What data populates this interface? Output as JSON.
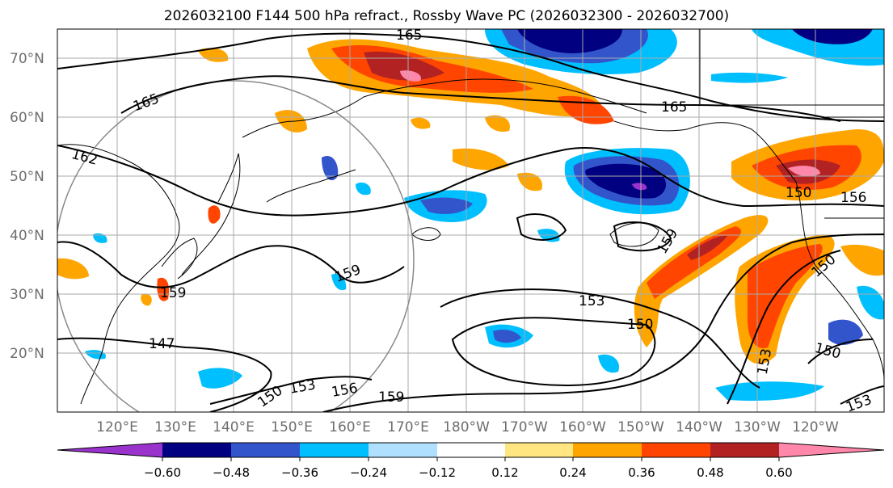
{
  "title": "2026032100 F144 500 hPa refract., Rossby Wave PC (2026032300 - 2026032700)",
  "map": {
    "lat_labels": [
      "70°N",
      "60°N",
      "50°N",
      "40°N",
      "30°N",
      "20°N"
    ],
    "lon_labels": [
      "120°E",
      "130°E",
      "140°E",
      "150°E",
      "160°E",
      "170°E",
      "180°W",
      "170°W",
      "160°W",
      "150°W",
      "140°W",
      "130°W",
      "120°W"
    ],
    "contour_labels": [
      "165",
      "165",
      "165",
      "162",
      "159",
      "159",
      "159",
      "159",
      "156",
      "156",
      "153",
      "153",
      "153",
      "153",
      "150",
      "150",
      "150",
      "150",
      "147",
      "150"
    ]
  },
  "colorbar": {
    "colors": [
      "#9933cc",
      "#000080",
      "#3355cc",
      "#00bfff",
      "#b0e0ff",
      "#ffffff",
      "#ffe680",
      "#ffa500",
      "#ff4500",
      "#b22222",
      "#ff88aa"
    ],
    "tick_labels": [
      "−0.60",
      "−0.48",
      "−0.36",
      "−0.24",
      "−0.12",
      "0.12",
      "0.24",
      "0.36",
      "0.48",
      "0.60"
    ]
  }
}
